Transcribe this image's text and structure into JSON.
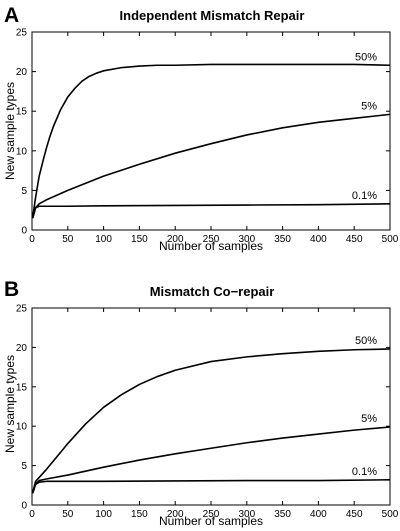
{
  "chart_data": [
    {
      "type": "line",
      "panel_label": "A",
      "title": "Independent Mismatch Repair",
      "xlabel": "Number of samples",
      "ylabel": "New sample types",
      "xlim": [
        0,
        500
      ],
      "ylim": [
        0,
        25
      ],
      "xticks": [
        0,
        50,
        100,
        150,
        200,
        250,
        300,
        350,
        400,
        450,
        500
      ],
      "yticks": [
        0,
        5,
        10,
        15,
        20,
        25
      ],
      "grid": false,
      "legend": "none",
      "series": [
        {
          "name": "50%",
          "x": [
            1,
            5,
            10,
            15,
            20,
            25,
            30,
            40,
            50,
            60,
            70,
            80,
            90,
            100,
            125,
            150,
            175,
            200,
            250,
            300,
            350,
            400,
            450,
            500
          ],
          "y": [
            1.6,
            4.1,
            6.8,
            8.6,
            10.3,
            11.8,
            13.1,
            15.2,
            16.8,
            17.9,
            18.8,
            19.4,
            19.8,
            20.1,
            20.5,
            20.7,
            20.8,
            20.8,
            20.9,
            20.9,
            20.9,
            20.9,
            20.9,
            20.8
          ]
        },
        {
          "name": "5%",
          "x": [
            1,
            5,
            10,
            20,
            50,
            100,
            150,
            200,
            250,
            300,
            350,
            400,
            450,
            500
          ],
          "y": [
            1.5,
            2.8,
            3.3,
            3.8,
            5.0,
            6.8,
            8.3,
            9.7,
            10.9,
            12.0,
            12.9,
            13.6,
            14.1,
            14.6
          ]
        },
        {
          "name": "0.1%",
          "x": [
            1,
            5,
            10,
            20,
            50,
            100,
            200,
            300,
            400,
            500
          ],
          "y": [
            1.5,
            2.8,
            3.0,
            3.0,
            3.0,
            3.05,
            3.1,
            3.15,
            3.2,
            3.3
          ]
        }
      ]
    },
    {
      "type": "line",
      "panel_label": "B",
      "title": "Mismatch Co−repair",
      "xlabel": "Number of samples",
      "ylabel": "New sample types",
      "xlim": [
        0,
        500
      ],
      "ylim": [
        0,
        25
      ],
      "xticks": [
        0,
        50,
        100,
        150,
        200,
        250,
        300,
        350,
        400,
        450,
        500
      ],
      "yticks": [
        0,
        5,
        10,
        15,
        20,
        25
      ],
      "grid": false,
      "legend": "none",
      "series": [
        {
          "name": "50%",
          "x": [
            1,
            5,
            10,
            20,
            30,
            40,
            50,
            75,
            100,
            125,
            150,
            175,
            200,
            250,
            300,
            350,
            400,
            450,
            500
          ],
          "y": [
            1.6,
            3.0,
            3.5,
            4.5,
            5.6,
            6.7,
            7.8,
            10.3,
            12.4,
            14.0,
            15.3,
            16.3,
            17.1,
            18.2,
            18.8,
            19.2,
            19.5,
            19.7,
            19.8
          ]
        },
        {
          "name": "5%",
          "x": [
            1,
            5,
            10,
            20,
            50,
            100,
            150,
            200,
            250,
            300,
            350,
            400,
            450,
            500
          ],
          "y": [
            1.5,
            2.7,
            3.1,
            3.3,
            3.8,
            4.8,
            5.7,
            6.5,
            7.2,
            7.9,
            8.5,
            9.0,
            9.5,
            9.9
          ]
        },
        {
          "name": "0.1%",
          "x": [
            1,
            5,
            10,
            20,
            50,
            100,
            200,
            300,
            400,
            500
          ],
          "y": [
            1.5,
            2.6,
            2.9,
            3.0,
            3.0,
            3.0,
            3.05,
            3.1,
            3.1,
            3.2
          ]
        }
      ]
    }
  ]
}
